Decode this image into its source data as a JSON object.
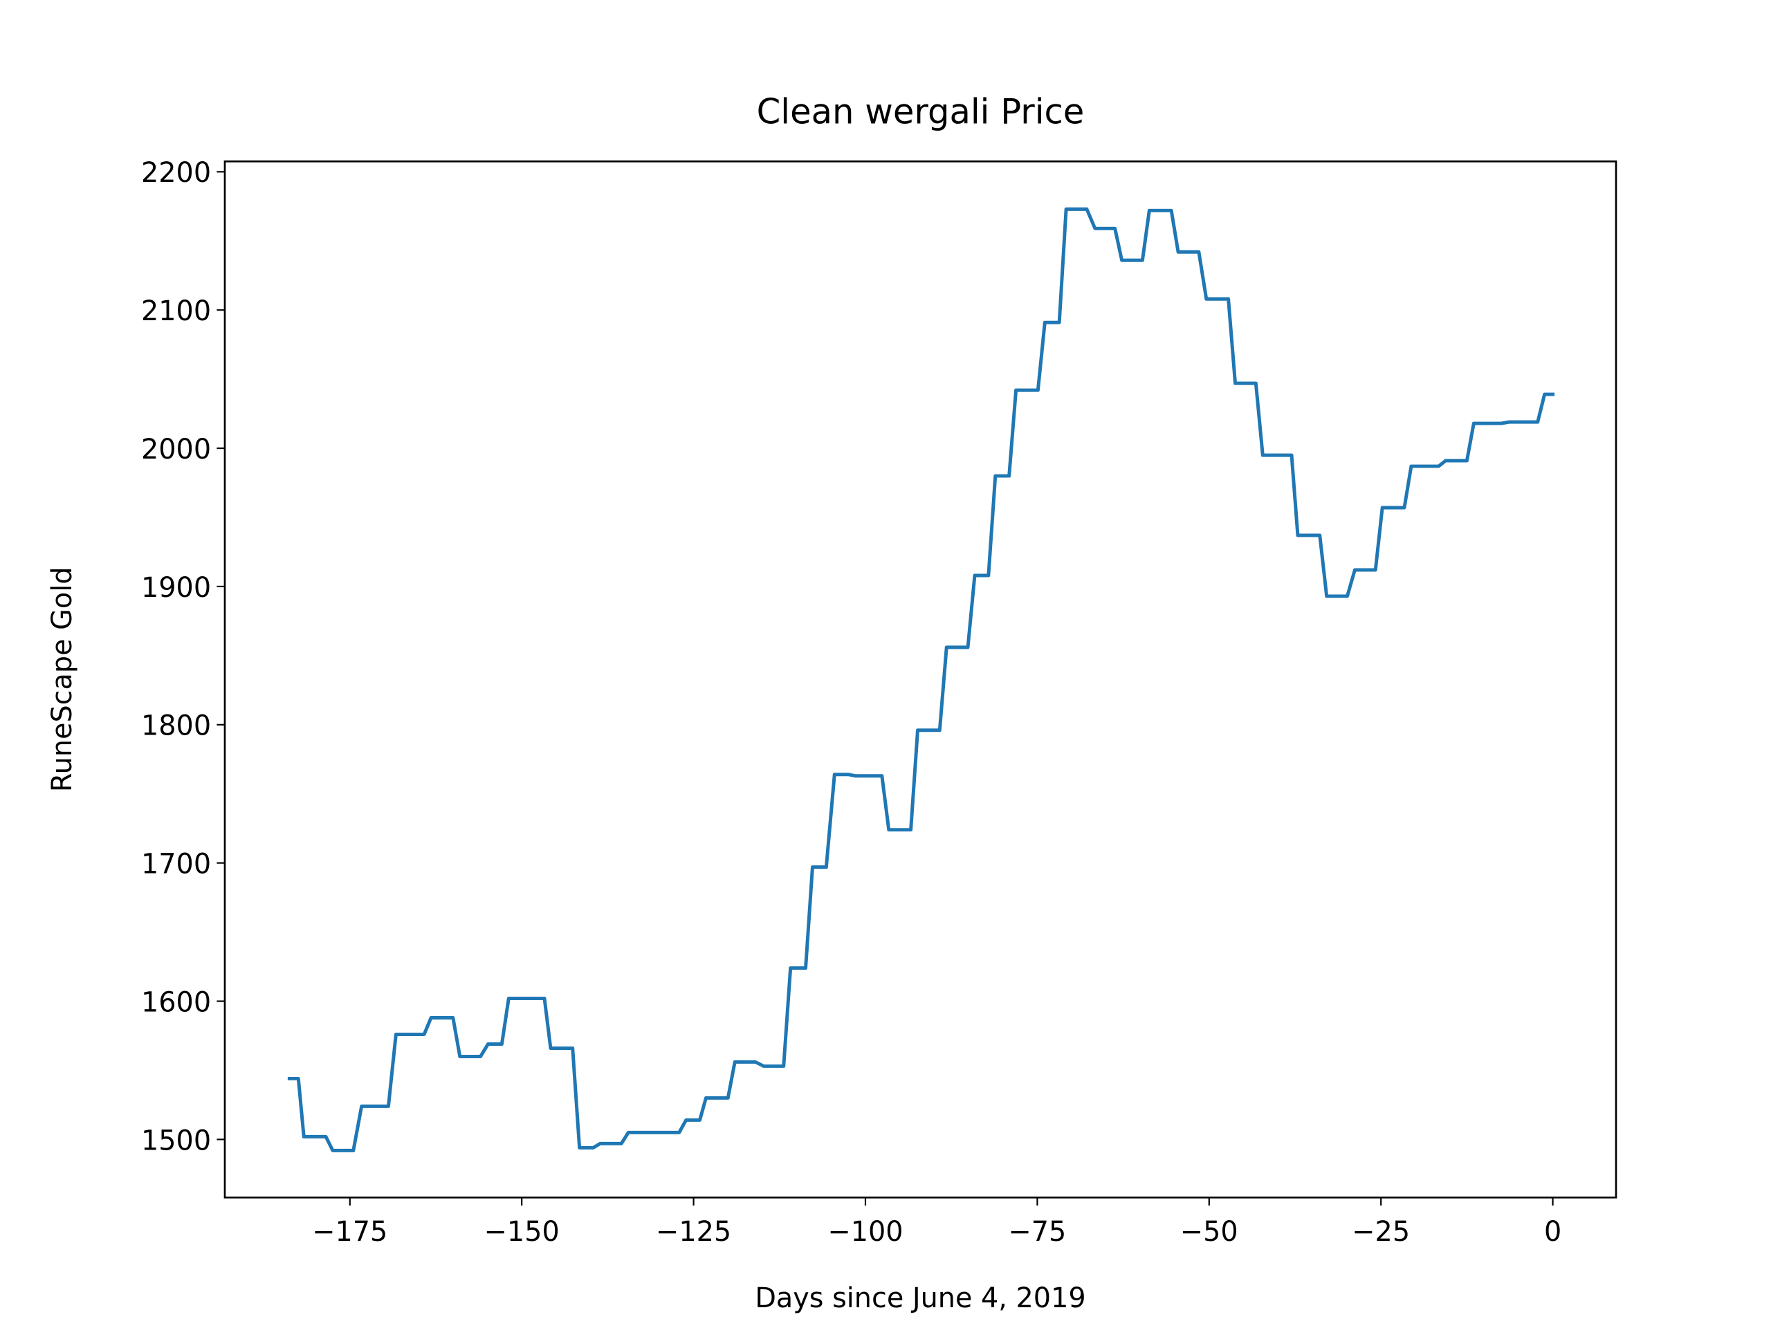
{
  "chart_data": {
    "type": "line",
    "title": "Clean wergali Price",
    "x_label": "Days since June 4, 2019",
    "y_label": "RuneScape Gold",
    "xlim": [
      -193.2,
      9.2
    ],
    "ylim": [
      1458,
      2207.5
    ],
    "xticks": [
      {
        "value": -175,
        "label": "−175"
      },
      {
        "value": -150,
        "label": "−150"
      },
      {
        "value": -125,
        "label": "−125"
      },
      {
        "value": -100,
        "label": "−100"
      },
      {
        "value": -75,
        "label": "−75"
      },
      {
        "value": -50,
        "label": "−50"
      },
      {
        "value": -25,
        "label": "−25"
      },
      0
    ],
    "yticks": [
      1500,
      1600,
      1700,
      1800,
      1900,
      2000,
      2100,
      2200
    ],
    "grid": false,
    "x": [
      -183.8,
      -182.5,
      -181.7,
      -178.5,
      -177.5,
      -174.5,
      -173.3,
      -169.4,
      -168.3,
      -164.2,
      -163.2,
      -160,
      -159,
      -156,
      -154.9,
      -152.9,
      -151.9,
      -146.7,
      -145.8,
      -142.6,
      -141.6,
      -139.6,
      -138.6,
      -135.5,
      -134.5,
      -127.1,
      -126.1,
      -124.1,
      -123.2,
      -120,
      -119,
      -116,
      -114.8,
      -111.9,
      -110.9,
      -108.7,
      -107.7,
      -105.7,
      -104.5,
      -102.5,
      -101.5,
      -97.6,
      -96.6,
      -93.4,
      -92.4,
      -89.2,
      -88.2,
      -85.1,
      -84.1,
      -82.1,
      -81.1,
      -79.1,
      -78.1,
      -74.9,
      -73.9,
      -71.8,
      -70.8,
      -67.8,
      -66.6,
      -63.7,
      -62.7,
      -59.7,
      -58.7,
      -55.5,
      -54.5,
      -51.5,
      -50.4,
      -47.2,
      -46.2,
      -43.2,
      -42.2,
      -38,
      -37.1,
      -33.9,
      -32.9,
      -29.9,
      -28.8,
      -25.8,
      -24.8,
      -21.6,
      -20.6,
      -16.6,
      -15.6,
      -12.5,
      -11.5,
      -7.5,
      -6.3,
      -2.2,
      -1.2,
      0
    ],
    "series": [
      {
        "color": "#1f77b4",
        "values": [
          1544,
          1544,
          1502,
          1502,
          1492,
          1492,
          1524,
          1524,
          1576,
          1576,
          1588,
          1588,
          1560,
          1560,
          1569,
          1569,
          1602,
          1602,
          1566,
          1566,
          1494,
          1494,
          1497,
          1497,
          1505,
          1505,
          1514,
          1514,
          1530,
          1530,
          1556,
          1556,
          1553,
          1553,
          1624,
          1624,
          1697,
          1697,
          1764,
          1764,
          1763,
          1763,
          1724,
          1724,
          1796,
          1796,
          1856,
          1856,
          1908,
          1908,
          1980,
          1980,
          2042,
          2042,
          2091,
          2091,
          2173,
          2173,
          2159,
          2159,
          2136,
          2136,
          2172,
          2172,
          2142,
          2142,
          2108,
          2108,
          2047,
          2047,
          1995,
          1995,
          1937,
          1937,
          1893,
          1893,
          1912,
          1912,
          1957,
          1957,
          1987,
          1987,
          1991,
          1991,
          2018,
          2018,
          2019,
          2019,
          2039,
          2039
        ]
      }
    ]
  }
}
